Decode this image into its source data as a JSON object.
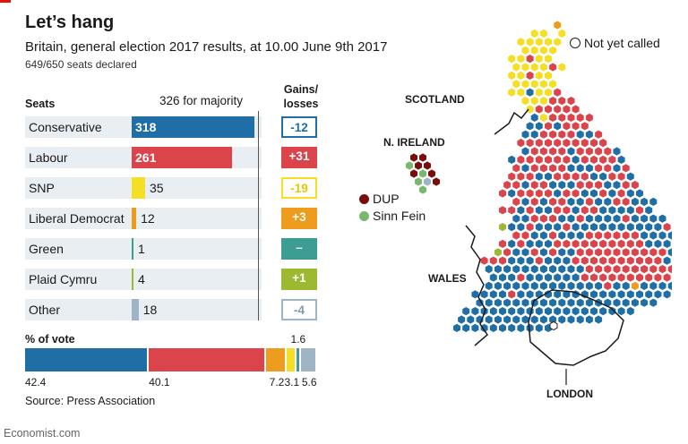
{
  "title": "Let’s hang",
  "subtitle": "Britain, general election 2017 results, at 10.00 June 9th 2017",
  "declared": "649/650 seats declared",
  "seats_header": "Seats",
  "majority_label": "326 for majority",
  "gains_header_1": "Gains/",
  "gains_header_2": "losses",
  "vote_header": "% of vote",
  "source": "Source: Press Association",
  "brand": "Economist.com",
  "legend": {
    "not_called": "Not yet called",
    "dup": "DUP",
    "sinn_fein": "Sinn Fein"
  },
  "map_labels": {
    "scotland": "SCOTLAND",
    "nireland": "N. IRELAND",
    "wales": "WALES",
    "london": "LONDON"
  },
  "colors": {
    "conservative": "#1f6ea6",
    "labour": "#db444b",
    "snp": "#f4de26",
    "libdem": "#ee9c1d",
    "green": "#3d9c94",
    "plaid": "#9cb932",
    "other": "#9fb4c4",
    "dup": "#7b0c0c",
    "sinn_fein": "#79b86d",
    "accent": "#e3120b"
  },
  "chart_data": [
    {
      "type": "bar",
      "title": "Seats",
      "categories": [
        "Conservative",
        "Labour",
        "SNP",
        "Liberal Democrat",
        "Green",
        "Plaid Cymru",
        "Other"
      ],
      "values": [
        318,
        261,
        35,
        12,
        1,
        4,
        18
      ],
      "reference_line": {
        "value": 326,
        "label": "326 for majority"
      },
      "gains_losses": [
        "-12",
        "+31",
        "-19",
        "+3",
        "–",
        "+1",
        "-4"
      ],
      "xlim": [
        0,
        326
      ]
    },
    {
      "type": "bar",
      "stacked": true,
      "title": "% of vote",
      "categories": [
        "Conservative",
        "Labour",
        "Liberal Democrat",
        "SNP",
        "Green",
        "Other"
      ],
      "values": [
        42.4,
        40.1,
        7.2,
        3.1,
        1.6,
        5.6
      ],
      "value_labels": [
        "42.4",
        "40.1",
        "7.2",
        "3.1",
        "1.6",
        "5.6"
      ]
    }
  ]
}
